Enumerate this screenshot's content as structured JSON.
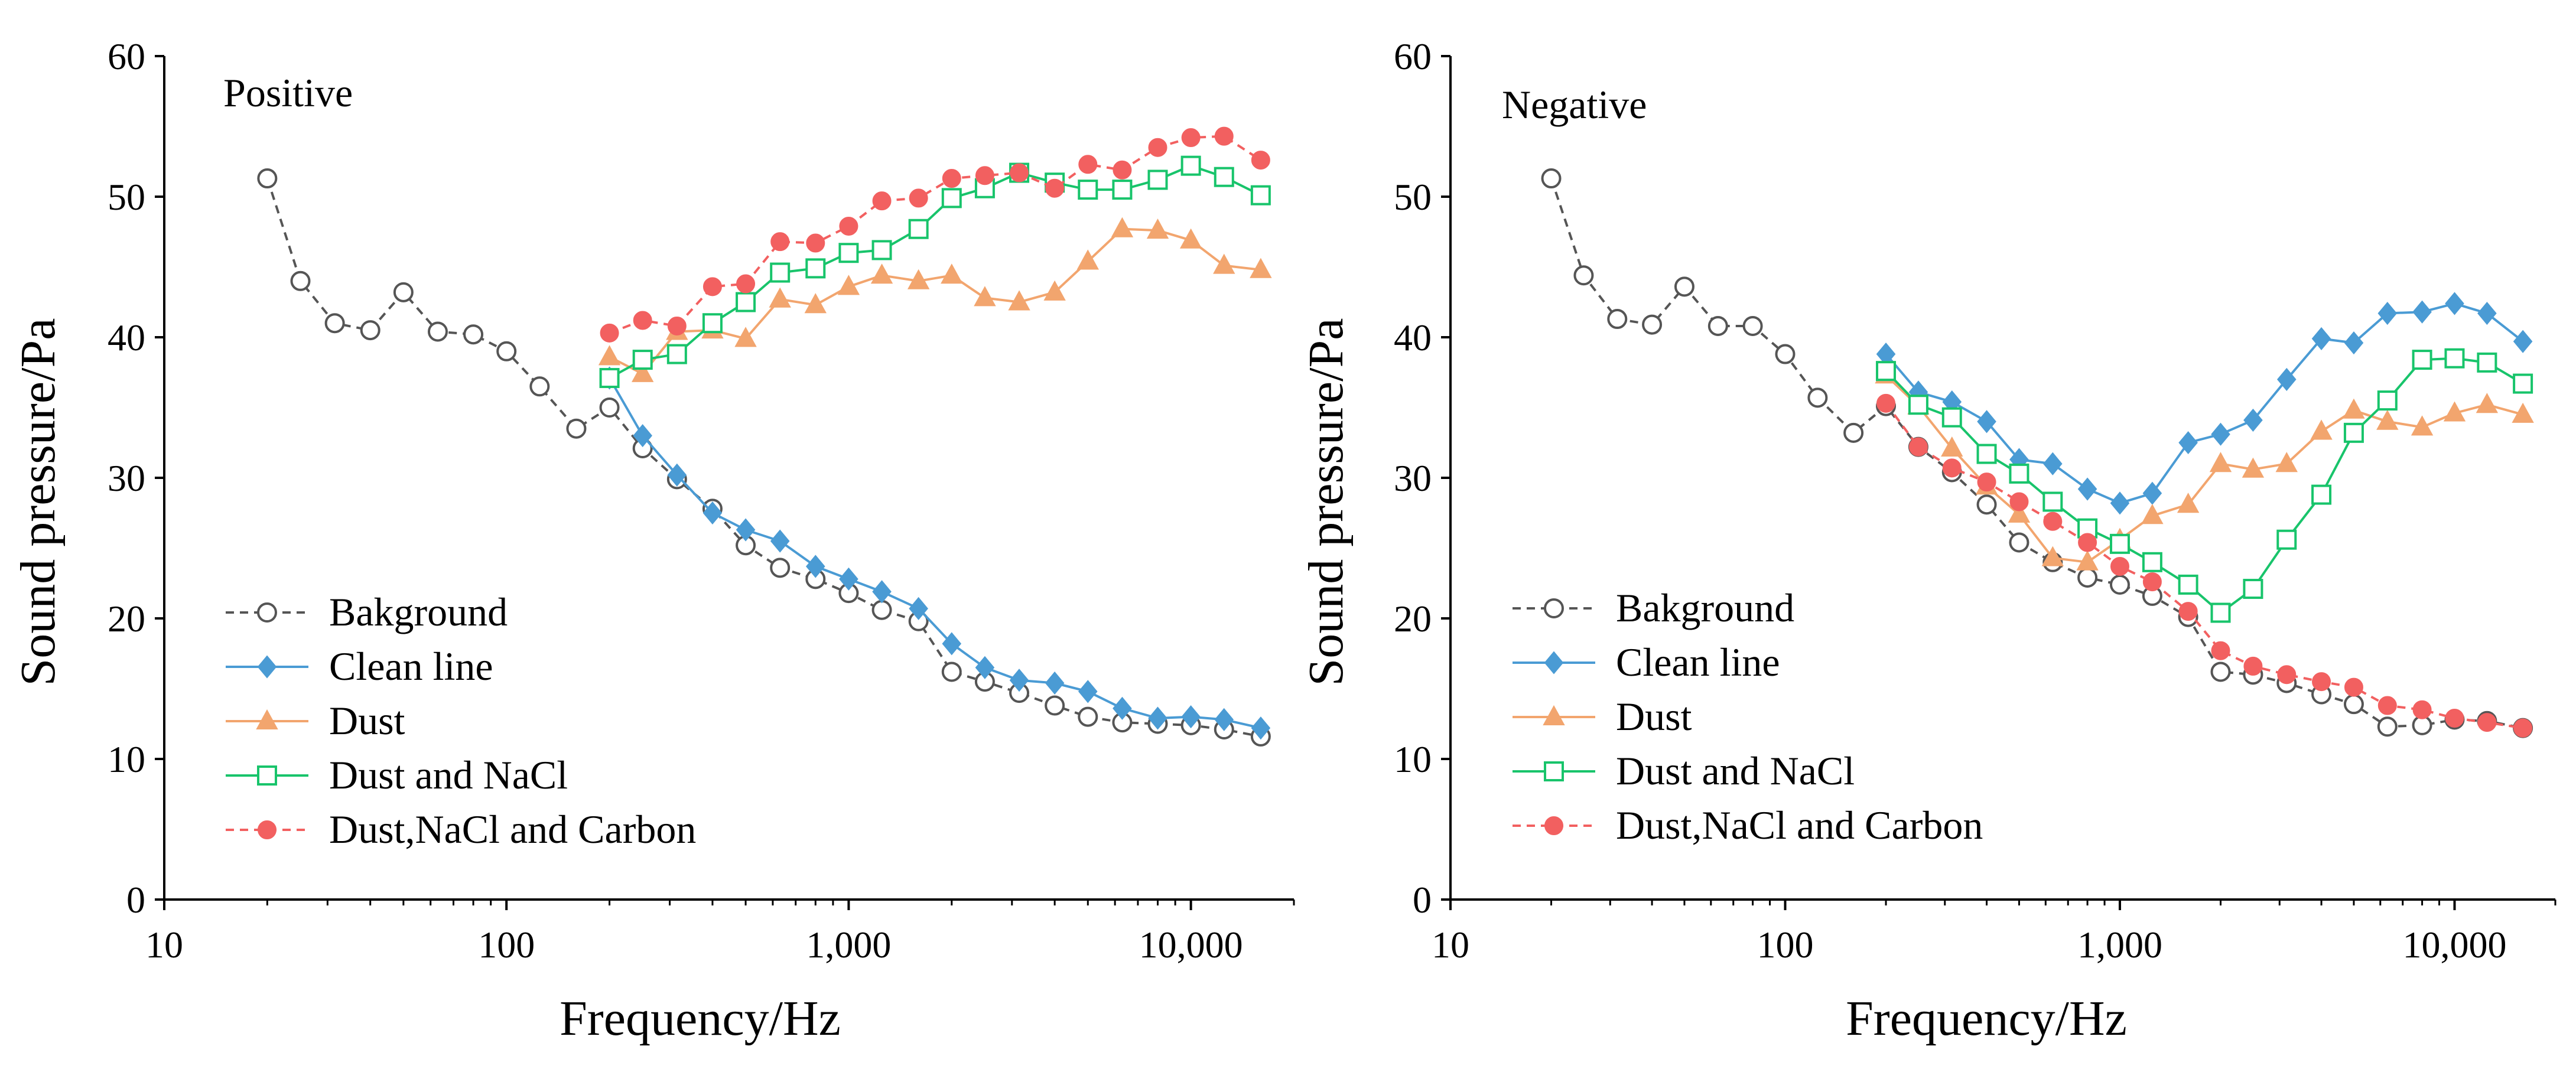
{
  "chart_data": [
    {
      "type": "line",
      "title": "Positive",
      "xlabel": "Frequency/Hz",
      "ylabel": "Sound pressure/Pa",
      "xscale": "log",
      "xlim": [
        10,
        20000
      ],
      "ylim": [
        0,
        60
      ],
      "xticks": [
        {
          "value": 10,
          "label": "10"
        },
        {
          "value": 100,
          "label": "100"
        },
        {
          "value": 1000,
          "label": "1,000"
        },
        {
          "value": 10000,
          "label": "10,000"
        }
      ],
      "yticks": [
        {
          "value": 0,
          "label": "0"
        },
        {
          "value": 10,
          "label": "10"
        },
        {
          "value": 20,
          "label": "20"
        },
        {
          "value": 30,
          "label": "30"
        },
        {
          "value": 40,
          "label": "40"
        },
        {
          "value": 50,
          "label": "50"
        },
        {
          "value": 60,
          "label": "60"
        }
      ],
      "legend_position": "bottom-left",
      "series": [
        {
          "name": "Bakground",
          "color": "#555555",
          "dash": true,
          "marker": "open-circle",
          "x": [
            20,
            25,
            31.5,
            40,
            50,
            63,
            80,
            100,
            125,
            160,
            200,
            250,
            315,
            400,
            500,
            630,
            800,
            1000,
            1250,
            1600,
            2000,
            2500,
            3150,
            4000,
            5000,
            6300,
            8000,
            10000,
            12500,
            16000
          ],
          "y": [
            51.3,
            44,
            41,
            40.5,
            43.2,
            40.4,
            40.2,
            39,
            36.5,
            33.5,
            35,
            32.1,
            29.9,
            27.8,
            25.2,
            23.6,
            22.8,
            21.8,
            20.6,
            19.8,
            16.2,
            15.5,
            14.7,
            13.8,
            13,
            12.6,
            12.5,
            12.4,
            12.1,
            11.6
          ]
        },
        {
          "name": "Clean line",
          "color": "#4a9bd4",
          "dash": false,
          "marker": "diamond",
          "x": [
            200,
            250,
            315,
            400,
            500,
            630,
            800,
            1000,
            1250,
            1600,
            2000,
            2500,
            3150,
            4000,
            5000,
            6300,
            8000,
            10000,
            12500,
            16000
          ],
          "y": [
            37.1,
            33,
            30.2,
            27.5,
            26.3,
            25.5,
            23.7,
            22.8,
            21.9,
            20.7,
            18.2,
            16.5,
            15.6,
            15.4,
            14.8,
            13.6,
            12.9,
            13,
            12.8,
            12.2
          ]
        },
        {
          "name": "Dust",
          "color": "#f2a56e",
          "dash": false,
          "marker": "triangle",
          "x": [
            200,
            250,
            315,
            400,
            500,
            630,
            800,
            1000,
            1250,
            1600,
            2000,
            2500,
            3150,
            4000,
            5000,
            6300,
            8000,
            10000,
            12500,
            16000
          ],
          "y": [
            38.6,
            37.4,
            40.4,
            40.5,
            39.9,
            42.7,
            42.3,
            43.6,
            44.4,
            44,
            44.4,
            42.8,
            42.5,
            43.2,
            45.4,
            47.7,
            47.6,
            46.9,
            45.1,
            44.8
          ]
        },
        {
          "name": "Dust and NaCl",
          "color": "#18c46b",
          "dash": false,
          "marker": "open-square",
          "x": [
            200,
            250,
            315,
            400,
            500,
            630,
            800,
            1000,
            1250,
            1600,
            2000,
            2500,
            3150,
            4000,
            5000,
            6300,
            8000,
            10000,
            12500,
            16000
          ],
          "y": [
            37.1,
            38.4,
            38.8,
            41,
            42.5,
            44.6,
            44.9,
            46,
            46.2,
            47.7,
            49.9,
            50.6,
            51.7,
            51,
            50.5,
            50.5,
            51.2,
            52.2,
            51.4,
            50.1
          ]
        },
        {
          "name": "Dust,NaCl and Carbon",
          "color": "#f26060",
          "dash": true,
          "marker": "filled-circle",
          "x": [
            200,
            250,
            315,
            400,
            500,
            630,
            800,
            1000,
            1250,
            1600,
            2000,
            2500,
            3150,
            4000,
            5000,
            6300,
            8000,
            10000,
            12500,
            16000
          ],
          "y": [
            40.3,
            41.2,
            40.8,
            43.6,
            43.8,
            46.8,
            46.7,
            47.9,
            49.7,
            49.9,
            51.3,
            51.5,
            51.7,
            50.6,
            52.3,
            51.9,
            53.5,
            54.2,
            54.3,
            52.6
          ]
        }
      ]
    },
    {
      "type": "line",
      "title": "Negative",
      "xlabel": "Frequency/Hz",
      "ylabel": "Sound pressure/Pa",
      "xscale": "log",
      "xlim": [
        10,
        20000
      ],
      "ylim": [
        0,
        60
      ],
      "xticks": [
        {
          "value": 10,
          "label": "10"
        },
        {
          "value": 100,
          "label": "100"
        },
        {
          "value": 1000,
          "label": "1,000"
        },
        {
          "value": 10000,
          "label": "10,000"
        }
      ],
      "yticks": [
        {
          "value": 0,
          "label": "0"
        },
        {
          "value": 10,
          "label": "10"
        },
        {
          "value": 20,
          "label": "20"
        },
        {
          "value": 30,
          "label": "30"
        },
        {
          "value": 40,
          "label": "40"
        },
        {
          "value": 50,
          "label": "50"
        },
        {
          "value": 60,
          "label": "60"
        }
      ],
      "legend_position": "bottom-left",
      "series": [
        {
          "name": "Bakground",
          "color": "#555555",
          "dash": true,
          "marker": "open-circle",
          "x": [
            20,
            25,
            31.5,
            40,
            50,
            63,
            80,
            100,
            125,
            160,
            200,
            250,
            315,
            400,
            500,
            630,
            800,
            1000,
            1250,
            1600,
            2000,
            2500,
            3150,
            4000,
            5000,
            6300,
            8000,
            10000,
            12500,
            16000
          ],
          "y": [
            51.3,
            44.4,
            41.3,
            40.9,
            43.6,
            40.8,
            40.8,
            38.8,
            35.7,
            33.2,
            35.1,
            32.2,
            30.4,
            28.1,
            25.4,
            24,
            22.9,
            22.4,
            21.6,
            20.1,
            16.2,
            16,
            15.4,
            14.6,
            13.9,
            12.3,
            12.4,
            12.8,
            12.7,
            12.2
          ]
        },
        {
          "name": "Clean line",
          "color": "#4a9bd4",
          "dash": false,
          "marker": "diamond",
          "x": [
            200,
            250,
            315,
            400,
            500,
            630,
            800,
            1000,
            1250,
            1600,
            2000,
            2500,
            3150,
            4000,
            5000,
            6300,
            8000,
            10000,
            12500,
            16000
          ],
          "y": [
            38.8,
            36.1,
            35.4,
            34,
            31.3,
            31,
            29.2,
            28.2,
            28.9,
            32.5,
            33.1,
            34.1,
            37,
            39.9,
            39.6,
            41.7,
            41.8,
            42.4,
            41.7,
            39.7
          ]
        },
        {
          "name": "Dust",
          "color": "#f2a56e",
          "dash": false,
          "marker": "triangle",
          "x": [
            200,
            250,
            315,
            400,
            500,
            630,
            800,
            1000,
            1250,
            1600,
            2000,
            2500,
            3150,
            4000,
            5000,
            6300,
            8000,
            10000,
            12500,
            16000
          ],
          "y": [
            37.3,
            35.1,
            32.1,
            29.4,
            27.4,
            24.3,
            24,
            25.6,
            27.3,
            28.1,
            31,
            30.6,
            31,
            33.3,
            34.8,
            34,
            33.6,
            34.6,
            35.2,
            34.5
          ]
        },
        {
          "name": "Dust and NaCl",
          "color": "#18c46b",
          "dash": false,
          "marker": "open-square",
          "x": [
            200,
            250,
            315,
            400,
            500,
            630,
            800,
            1000,
            1250,
            1600,
            2000,
            2500,
            3150,
            4000,
            5000,
            6300,
            8000,
            10000,
            12500,
            16000
          ],
          "y": [
            37.6,
            35.2,
            34.3,
            31.7,
            30.3,
            28.3,
            26.4,
            25.3,
            24,
            22.4,
            20.4,
            22.1,
            25.6,
            28.8,
            33.2,
            35.5,
            38.4,
            38.5,
            38.2,
            36.7
          ]
        },
        {
          "name": "Dust,NaCl and Carbon",
          "color": "#f26060",
          "dash": true,
          "marker": "filled-circle",
          "x": [
            200,
            250,
            315,
            400,
            500,
            630,
            800,
            1000,
            1250,
            1600,
            2000,
            2500,
            3150,
            4000,
            5000,
            6300,
            8000,
            10000,
            12500,
            16000
          ],
          "y": [
            35.3,
            32.2,
            30.7,
            29.7,
            28.3,
            26.9,
            25.4,
            23.7,
            22.6,
            20.5,
            17.7,
            16.6,
            16,
            15.5,
            15.1,
            13.8,
            13.5,
            12.9,
            12.6,
            12.2
          ]
        }
      ]
    }
  ]
}
